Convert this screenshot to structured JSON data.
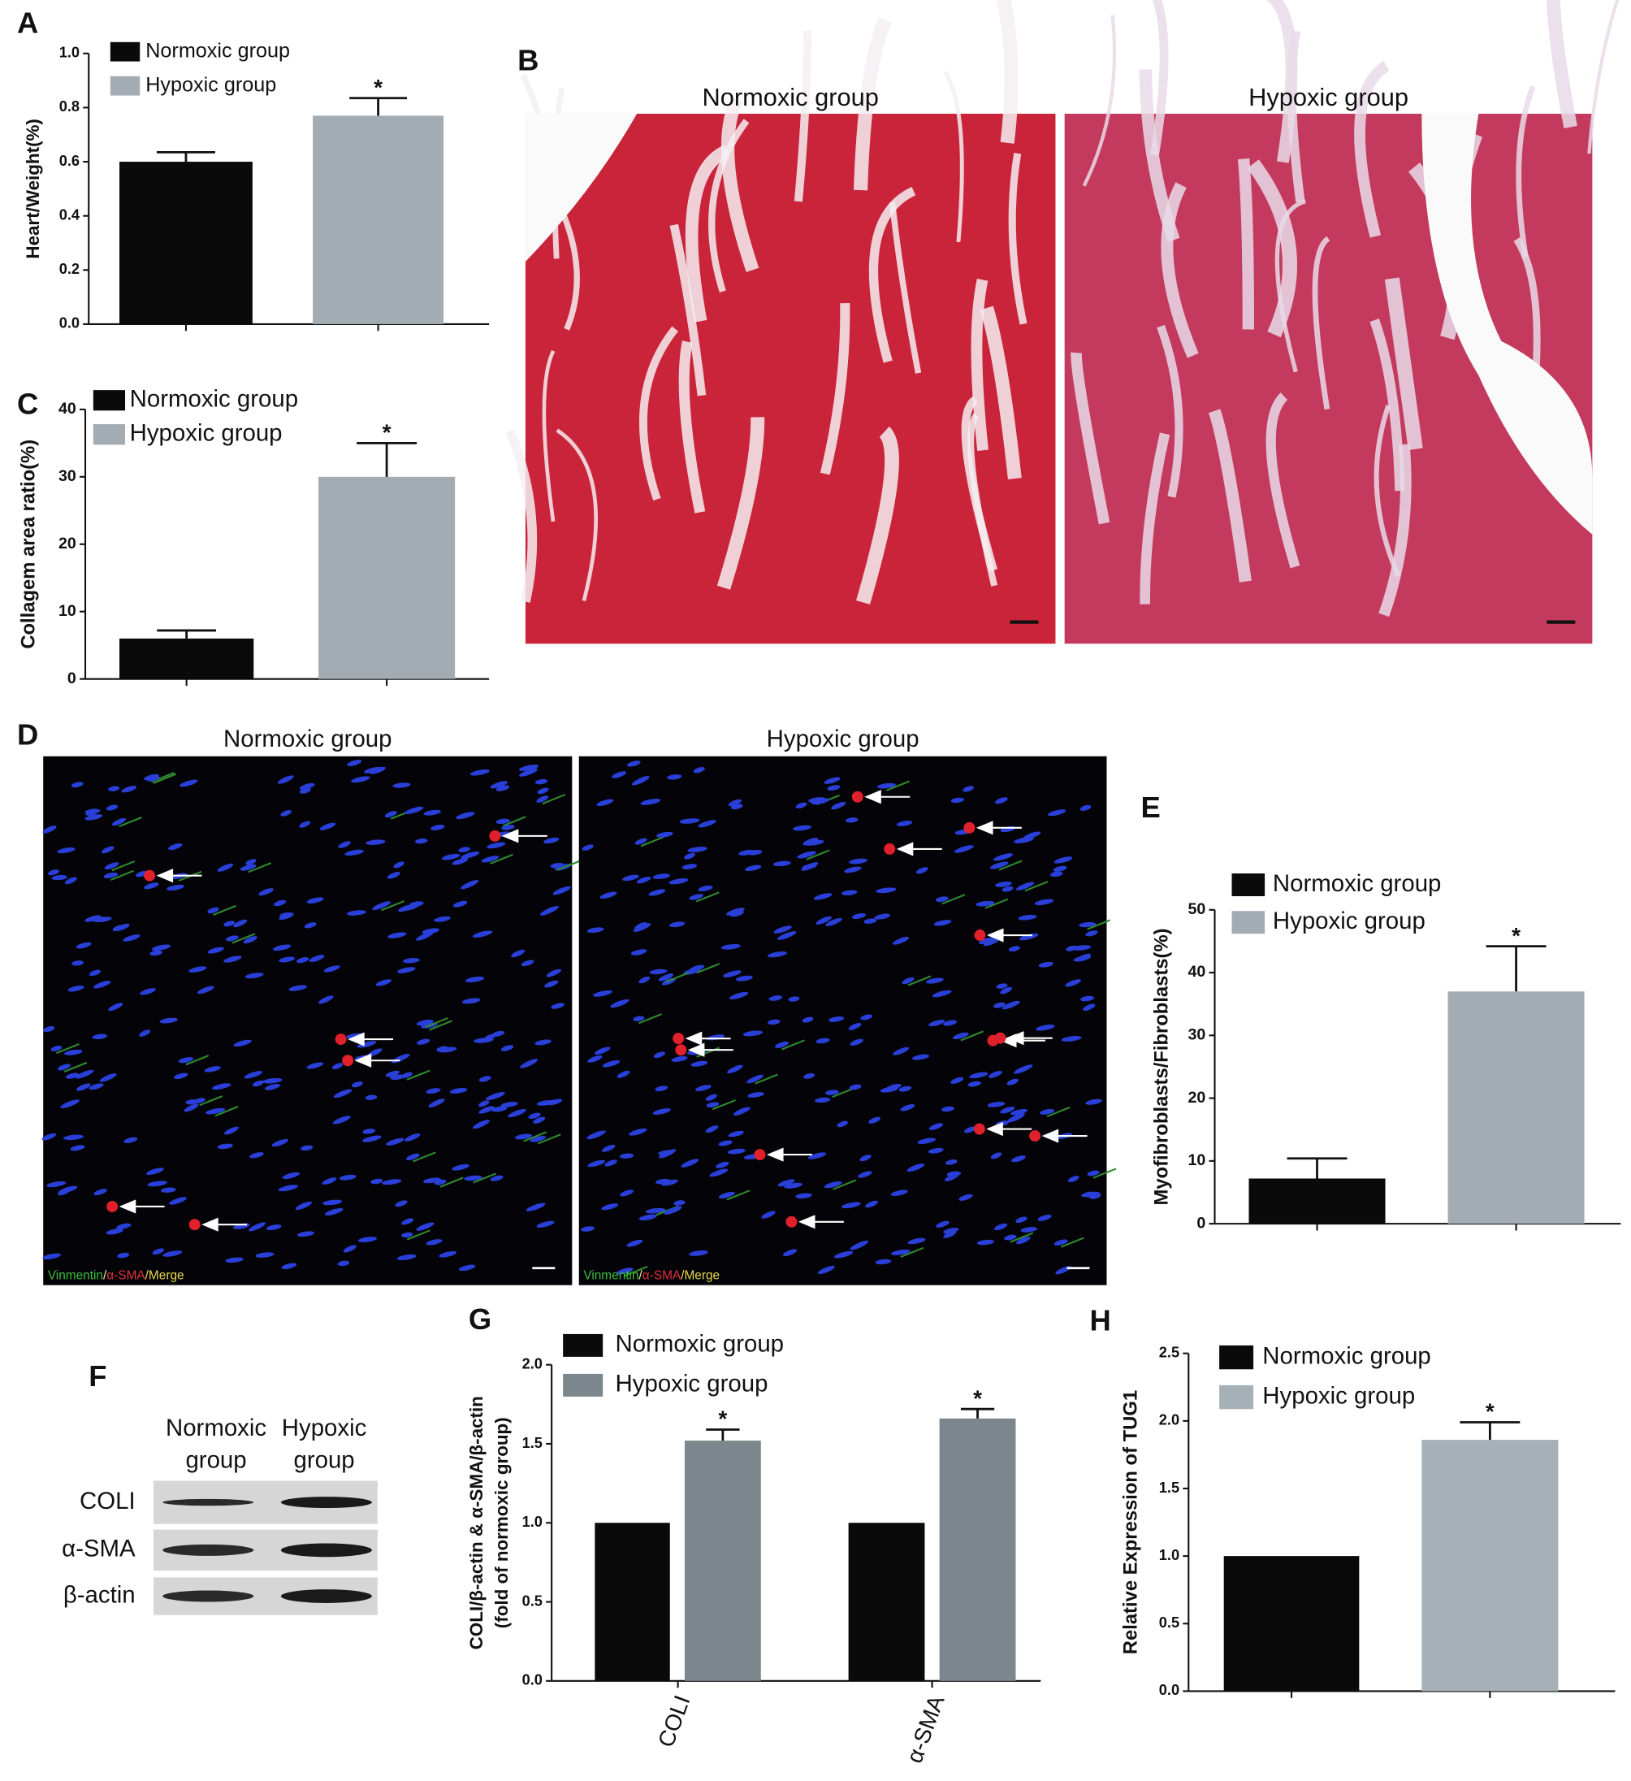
{
  "chart_data": [
    {
      "panel": "A",
      "type": "bar",
      "ylabel": "Heart/Weight(%)",
      "categories": [
        null
      ],
      "series": [
        {
          "name": "Normoxic group",
          "color": "#0a0a0a",
          "values": [
            0.6
          ],
          "errors": [
            0.035
          ]
        },
        {
          "name": "Hypoxic group",
          "color": "#a2acb2",
          "values": [
            0.77
          ],
          "errors": [
            0.065
          ],
          "annotations": [
            "*"
          ]
        }
      ],
      "ylim": [
        0,
        1.0
      ],
      "yticks": [
        {
          "value": 0,
          "label": "0.0"
        },
        0.2,
        0.4,
        0.6,
        0.8,
        {
          "value": 1,
          "label": "1.0"
        }
      ],
      "legend": "upper left"
    },
    {
      "panel": "C",
      "type": "bar",
      "ylabel": "Collagem area ratio(%)",
      "categories": [
        null
      ],
      "series": [
        {
          "name": "Normoxic group",
          "color": "#0a0a0a",
          "values": [
            6
          ],
          "errors": [
            1.2
          ]
        },
        {
          "name": "Hypoxic group",
          "color": "#a2acb2",
          "values": [
            30
          ],
          "errors": [
            5
          ],
          "annotations": [
            "*"
          ]
        }
      ],
      "ylim": [
        0,
        40
      ],
      "yticks": [
        0,
        10,
        20,
        30,
        40
      ],
      "legend": "upper left"
    },
    {
      "panel": "E",
      "type": "bar",
      "ylabel": "Myofibroblasts/Fibroblasts(%)",
      "categories": [
        null
      ],
      "series": [
        {
          "name": "Normoxic group",
          "color": "#0a0a0a",
          "values": [
            7.2
          ],
          "errors": [
            3.2
          ]
        },
        {
          "name": "Hypoxic group",
          "color": "#a2acb2",
          "values": [
            37
          ],
          "errors": [
            7.2
          ],
          "annotations": [
            "*"
          ]
        }
      ],
      "ylim": [
        0,
        50
      ],
      "yticks": [
        0,
        10,
        20,
        30,
        40,
        50
      ],
      "legend": "upper left"
    },
    {
      "panel": "G",
      "type": "bar",
      "ylabel": [
        "COLI/β-actin & α-SMA/β-actin",
        "(fold of normoxic group)"
      ],
      "categories": [
        "COLI",
        "α-SMA"
      ],
      "series": [
        {
          "name": "Normoxic group",
          "color": "#0a0a0a",
          "values": [
            1,
            1
          ]
        },
        {
          "name": "Hypoxic group",
          "color": "#7b878d",
          "values": [
            1.52,
            1.66
          ],
          "errors": [
            0.07,
            0.06
          ],
          "annotations": [
            "*",
            "*"
          ]
        }
      ],
      "ylim": [
        0,
        2.0
      ],
      "yticks": [
        {
          "value": 0,
          "label": "0.0"
        },
        0.5,
        {
          "value": 1,
          "label": "1.0"
        },
        1.5,
        {
          "value": 2,
          "label": "2.0"
        }
      ],
      "legend": "upper left"
    },
    {
      "panel": "H",
      "type": "bar",
      "ylabel": "Relative Expression of TUG1",
      "categories": [
        null
      ],
      "series": [
        {
          "name": "Normoxic group",
          "color": "#0a0a0a",
          "values": [
            1.0
          ]
        },
        {
          "name": "Hypoxic group",
          "color": "#a5b1b7",
          "values": [
            1.86
          ],
          "errors": [
            0.13
          ],
          "annotations": [
            "*"
          ]
        }
      ],
      "ylim": [
        0,
        2.5
      ],
      "yticks": [
        {
          "value": 0,
          "label": "0.0"
        },
        0.5,
        {
          "value": 1,
          "label": "1.0"
        },
        1.5,
        {
          "value": 2,
          "label": "2.0"
        },
        2.5
      ],
      "legend": "upper left"
    }
  ],
  "images": {
    "panel_b": {
      "panel": "B",
      "titles": [
        "Normoxic group",
        "Hypoxic group"
      ]
    },
    "panel_d": {
      "panel": "D",
      "titles": [
        "Normoxic group",
        "Hypoxic group"
      ],
      "caption": [
        "Vinmentin",
        "/",
        "α-SMA",
        "/Merge"
      ]
    },
    "panel_f": {
      "panel": "F",
      "columns": [
        [
          "Normoxic",
          "group"
        ],
        [
          "Hypoxic",
          "group"
        ]
      ],
      "rows": [
        "COLI",
        "α-SMA",
        "β-actin"
      ]
    }
  }
}
